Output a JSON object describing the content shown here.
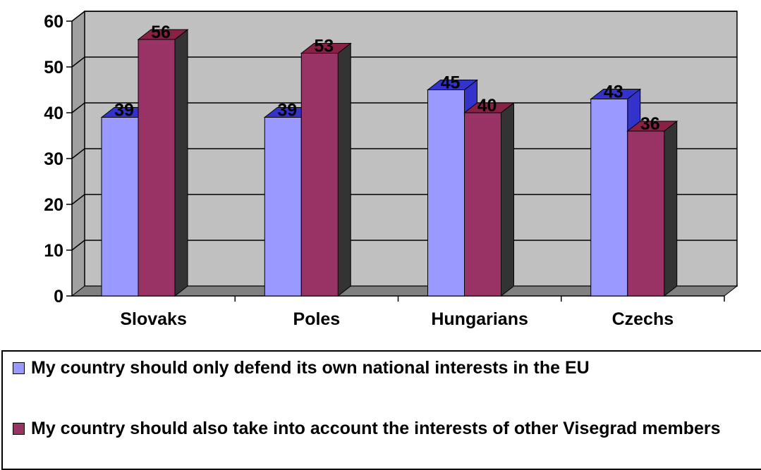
{
  "chart_data": {
    "type": "bar",
    "categories": [
      "Slovaks",
      "Poles",
      "Hungarians",
      "Czechs"
    ],
    "series": [
      {
        "name": "My country should only defend its own national interests in the EU",
        "values": [
          39,
          39,
          45,
          43
        ],
        "color": "#9999ff"
      },
      {
        "name": "My country should also take into account the interests of other Visegrad members",
        "values": [
          56,
          53,
          40,
          36
        ],
        "color": "#993366"
      }
    ],
    "data_labels": [
      [
        "39",
        "39",
        "45",
        "43"
      ],
      [
        "56",
        "53",
        "40",
        "36"
      ]
    ],
    "ylim": [
      0,
      60
    ],
    "yticks": [
      "0",
      "10",
      "20",
      "30",
      "40",
      "50",
      "60"
    ],
    "grid": true,
    "legend_position": "bottom",
    "three_d": true,
    "wall_color": "#c0c0c0",
    "floor_color": "#808080"
  }
}
